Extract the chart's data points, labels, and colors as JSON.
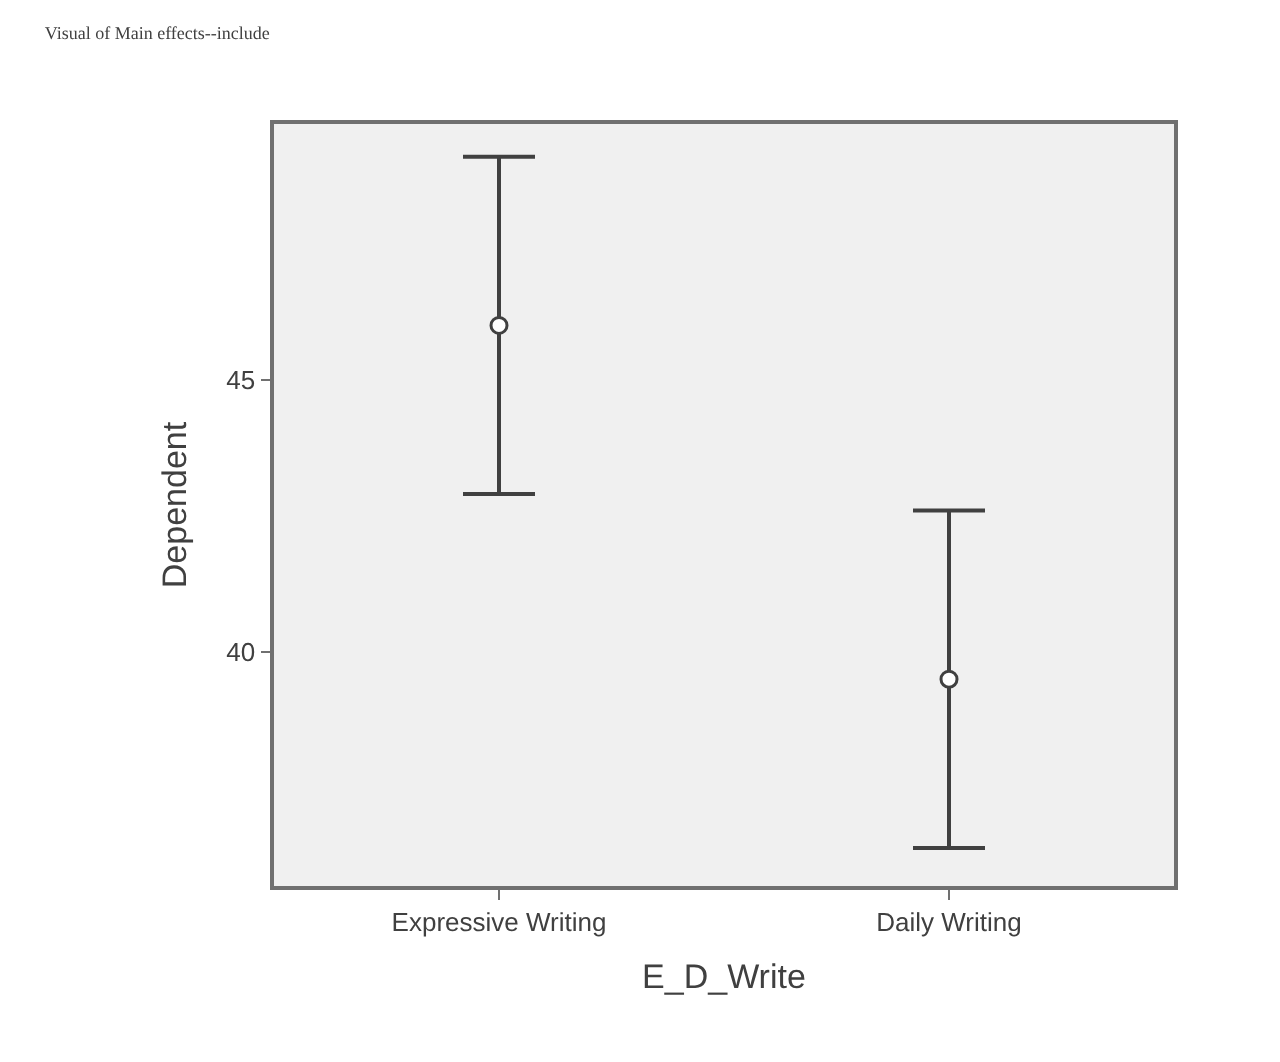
{
  "chart_data": {
    "type": "scatter",
    "title": "Visual of Main effects--include",
    "xlabel": "E_D_Write",
    "ylabel": "Dependent",
    "categories": [
      "Expressive Writing",
      "Daily Writing"
    ],
    "series": [
      {
        "color": "#404040",
        "values": [
          46.0,
          39.5
        ],
        "errors": [
          [
            42.9,
            49.1
          ],
          [
            36.4,
            42.6
          ]
        ]
      }
    ],
    "ylim": [
      35.7,
      49.7
    ],
    "yticks": [
      40,
      45
    ],
    "grid": false,
    "marker": "circle"
  }
}
